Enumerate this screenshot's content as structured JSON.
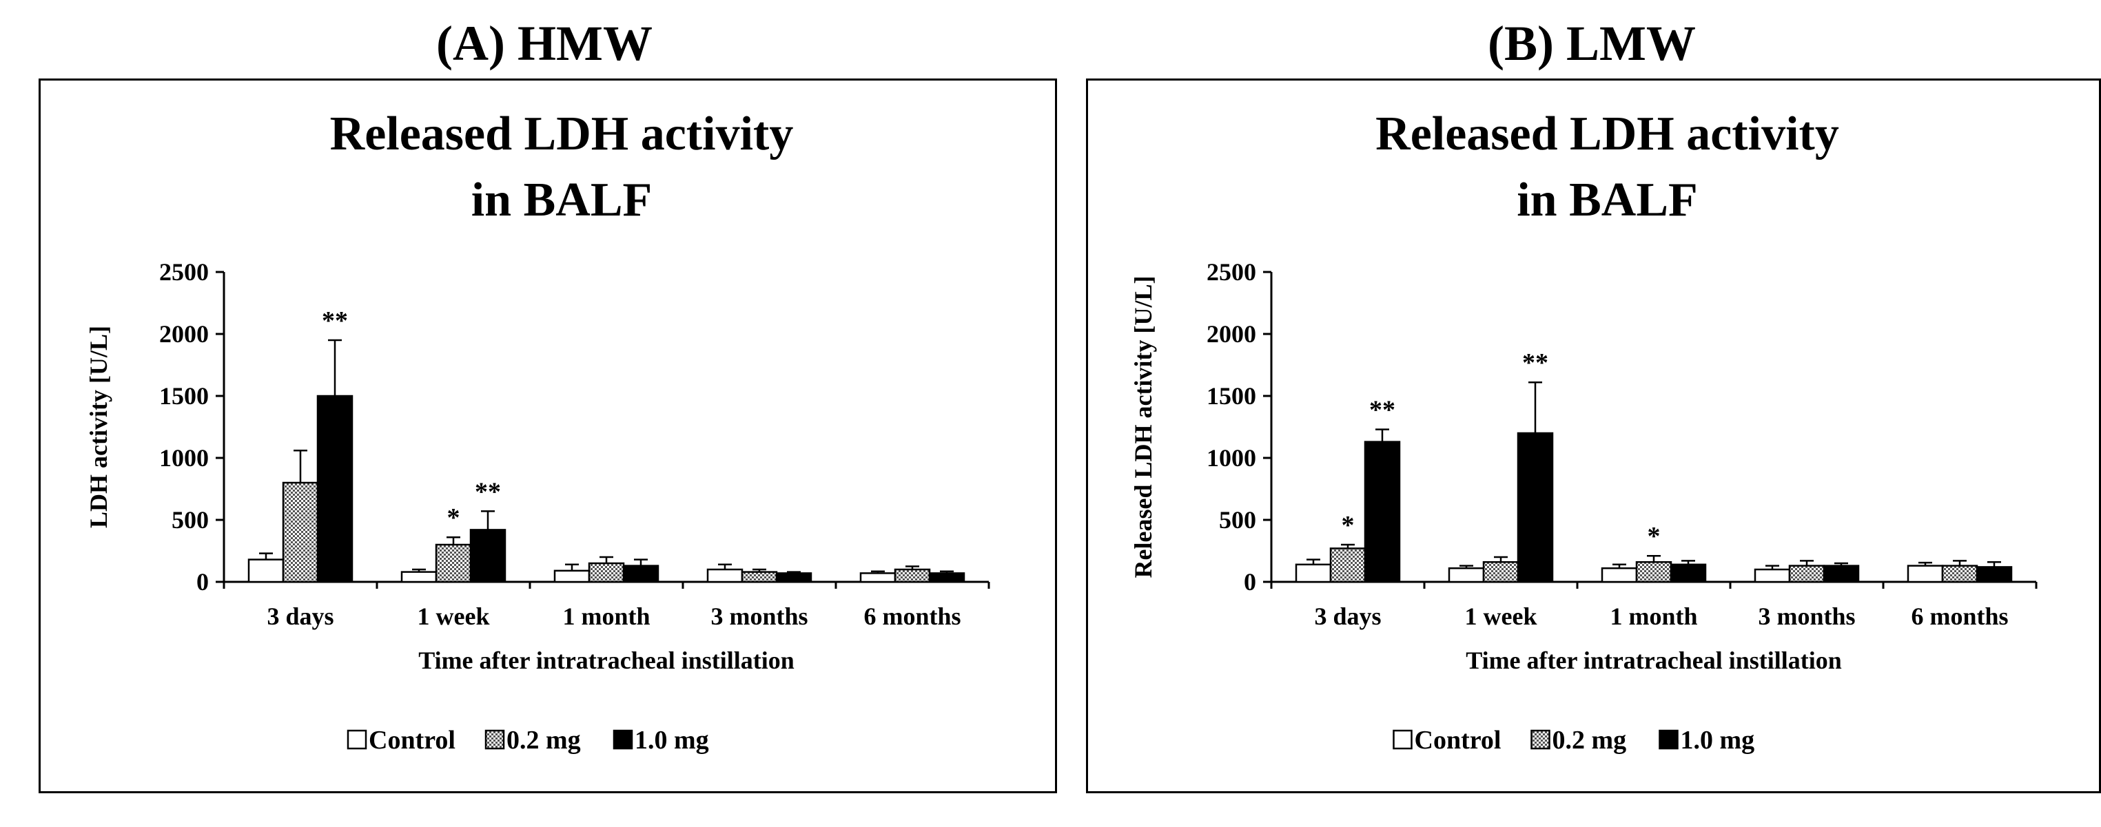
{
  "panels": [
    {
      "label": "(A) HMW"
    },
    {
      "label": "(B) LMW"
    }
  ],
  "chart_data": [
    {
      "type": "bar",
      "title": "Released LDH activity in BALF",
      "title_lines": [
        "Released LDH activity",
        "in BALF"
      ],
      "xlabel": "Time after intratracheal instillation",
      "ylabel": "LDH activity [U/L]",
      "ylim": [
        0,
        2500
      ],
      "yticks": [
        0,
        500,
        1000,
        1500,
        2000,
        2500
      ],
      "categories": [
        "3 days",
        "1 week",
        "1 month",
        "3 months",
        "6 months"
      ],
      "series": [
        {
          "name": "Control",
          "values": [
            180,
            80,
            90,
            100,
            70
          ],
          "errors": [
            50,
            20,
            50,
            40,
            15
          ],
          "sig": [
            "",
            "",
            "",
            "",
            ""
          ]
        },
        {
          "name": "0.2 mg",
          "values": [
            800,
            300,
            150,
            80,
            100
          ],
          "errors": [
            260,
            60,
            50,
            20,
            25
          ],
          "sig": [
            "",
            "*",
            "",
            "",
            ""
          ]
        },
        {
          "name": "1.0 mg",
          "values": [
            1500,
            420,
            130,
            70,
            70
          ],
          "errors": [
            450,
            150,
            50,
            10,
            15
          ],
          "sig": [
            "**",
            "**",
            "",
            "",
            ""
          ]
        }
      ],
      "legend_position": "bottom"
    },
    {
      "type": "bar",
      "title": "Released LDH activity in BALF",
      "title_lines": [
        "Released LDH activity",
        "in BALF"
      ],
      "xlabel": "Time after intratracheal instillation",
      "ylabel": "Released LDH activity [U/L]",
      "ylim": [
        0,
        2500
      ],
      "yticks": [
        0,
        500,
        1000,
        1500,
        2000,
        2500
      ],
      "categories": [
        "3 days",
        "1 week",
        "1 month",
        "3 months",
        "6 months"
      ],
      "series": [
        {
          "name": "Control",
          "values": [
            140,
            110,
            110,
            100,
            130
          ],
          "errors": [
            40,
            20,
            30,
            30,
            25
          ],
          "sig": [
            "",
            "",
            "",
            "",
            ""
          ]
        },
        {
          "name": "0.2 mg",
          "values": [
            270,
            160,
            160,
            130,
            130
          ],
          "errors": [
            30,
            40,
            50,
            40,
            40
          ],
          "sig": [
            "*",
            "",
            "*",
            "",
            ""
          ]
        },
        {
          "name": "1.0 mg",
          "values": [
            1130,
            1200,
            140,
            130,
            120
          ],
          "errors": [
            100,
            410,
            30,
            20,
            40
          ],
          "sig": [
            "**",
            "**",
            "",
            "",
            ""
          ]
        }
      ],
      "legend_position": "bottom"
    }
  ]
}
